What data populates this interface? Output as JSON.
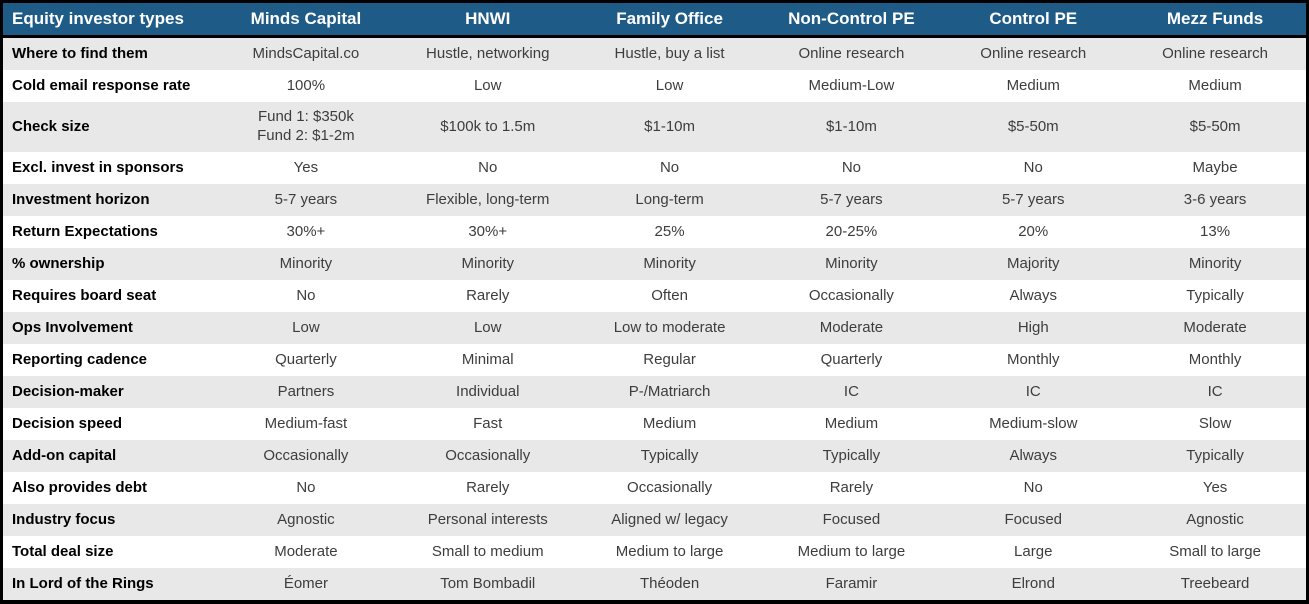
{
  "colors": {
    "header_bg": "#1f5b87",
    "header_text": "#ffffff",
    "border": "#000000",
    "row_bg": "#ffffff",
    "row_alt_bg": "#e8e8e8",
    "label_text": "#000000",
    "value_text": "#3d3d3d"
  },
  "table": {
    "header": {
      "label_column": "Equity investor types",
      "columns": [
        "Minds Capital",
        "HNWI",
        "Family Office",
        "Non-Control PE",
        "Control PE",
        "Mezz Funds"
      ]
    },
    "rows": [
      {
        "label": "Where to find them",
        "values": [
          "MindsCapital.co",
          "Hustle, networking",
          "Hustle, buy a list",
          "Online research",
          "Online research",
          "Online research"
        ]
      },
      {
        "label": "Cold email response rate",
        "values": [
          "100%",
          "Low",
          "Low",
          "Medium-Low",
          "Medium",
          "Medium"
        ]
      },
      {
        "label": "Check size",
        "tall": true,
        "values": [
          "Fund 1: $350k\nFund 2: $1-2m",
          "$100k to 1.5m",
          "$1-10m",
          "$1-10m",
          "$5-50m",
          "$5-50m"
        ]
      },
      {
        "label": "Excl. invest in sponsors",
        "values": [
          "Yes",
          "No",
          "No",
          "No",
          "No",
          "Maybe"
        ]
      },
      {
        "label": "Investment horizon",
        "values": [
          "5-7 years",
          "Flexible, long-term",
          "Long-term",
          "5-7 years",
          "5-7 years",
          "3-6 years"
        ]
      },
      {
        "label": "Return Expectations",
        "values": [
          "30%+",
          "30%+",
          "25%",
          "20-25%",
          "20%",
          "13%"
        ]
      },
      {
        "label": "% ownership",
        "values": [
          "Minority",
          "Minority",
          "Minority",
          "Minority",
          "Majority",
          "Minority"
        ]
      },
      {
        "label": "Requires board seat",
        "values": [
          "No",
          "Rarely",
          "Often",
          "Occasionally",
          "Always",
          "Typically"
        ]
      },
      {
        "label": "Ops Involvement",
        "values": [
          "Low",
          "Low",
          "Low to moderate",
          "Moderate",
          "High",
          "Moderate"
        ]
      },
      {
        "label": "Reporting cadence",
        "values": [
          "Quarterly",
          "Minimal",
          "Regular",
          "Quarterly",
          "Monthly",
          "Monthly"
        ]
      },
      {
        "label": "Decision-maker",
        "values": [
          "Partners",
          "Individual",
          "P-/Matriarch",
          "IC",
          "IC",
          "IC"
        ]
      },
      {
        "label": "Decision speed",
        "values": [
          "Medium-fast",
          "Fast",
          "Medium",
          "Medium",
          "Medium-slow",
          "Slow"
        ]
      },
      {
        "label": "Add-on capital",
        "values": [
          "Occasionally",
          "Occasionally",
          "Typically",
          "Typically",
          "Always",
          "Typically"
        ]
      },
      {
        "label": "Also provides debt",
        "values": [
          "No",
          "Rarely",
          "Occasionally",
          "Rarely",
          "No",
          "Yes"
        ]
      },
      {
        "label": "Industry focus",
        "values": [
          "Agnostic",
          "Personal interests",
          "Aligned w/ legacy",
          "Focused",
          "Focused",
          "Agnostic"
        ]
      },
      {
        "label": "Total deal size",
        "values": [
          "Moderate",
          "Small to medium",
          "Medium to large",
          "Medium to large",
          "Large",
          "Small to large"
        ]
      },
      {
        "label": "In Lord of the Rings",
        "values": [
          "Éomer",
          "Tom Bombadil",
          "Théoden",
          "Faramir",
          "Elrond",
          "Treebeard"
        ]
      }
    ]
  }
}
